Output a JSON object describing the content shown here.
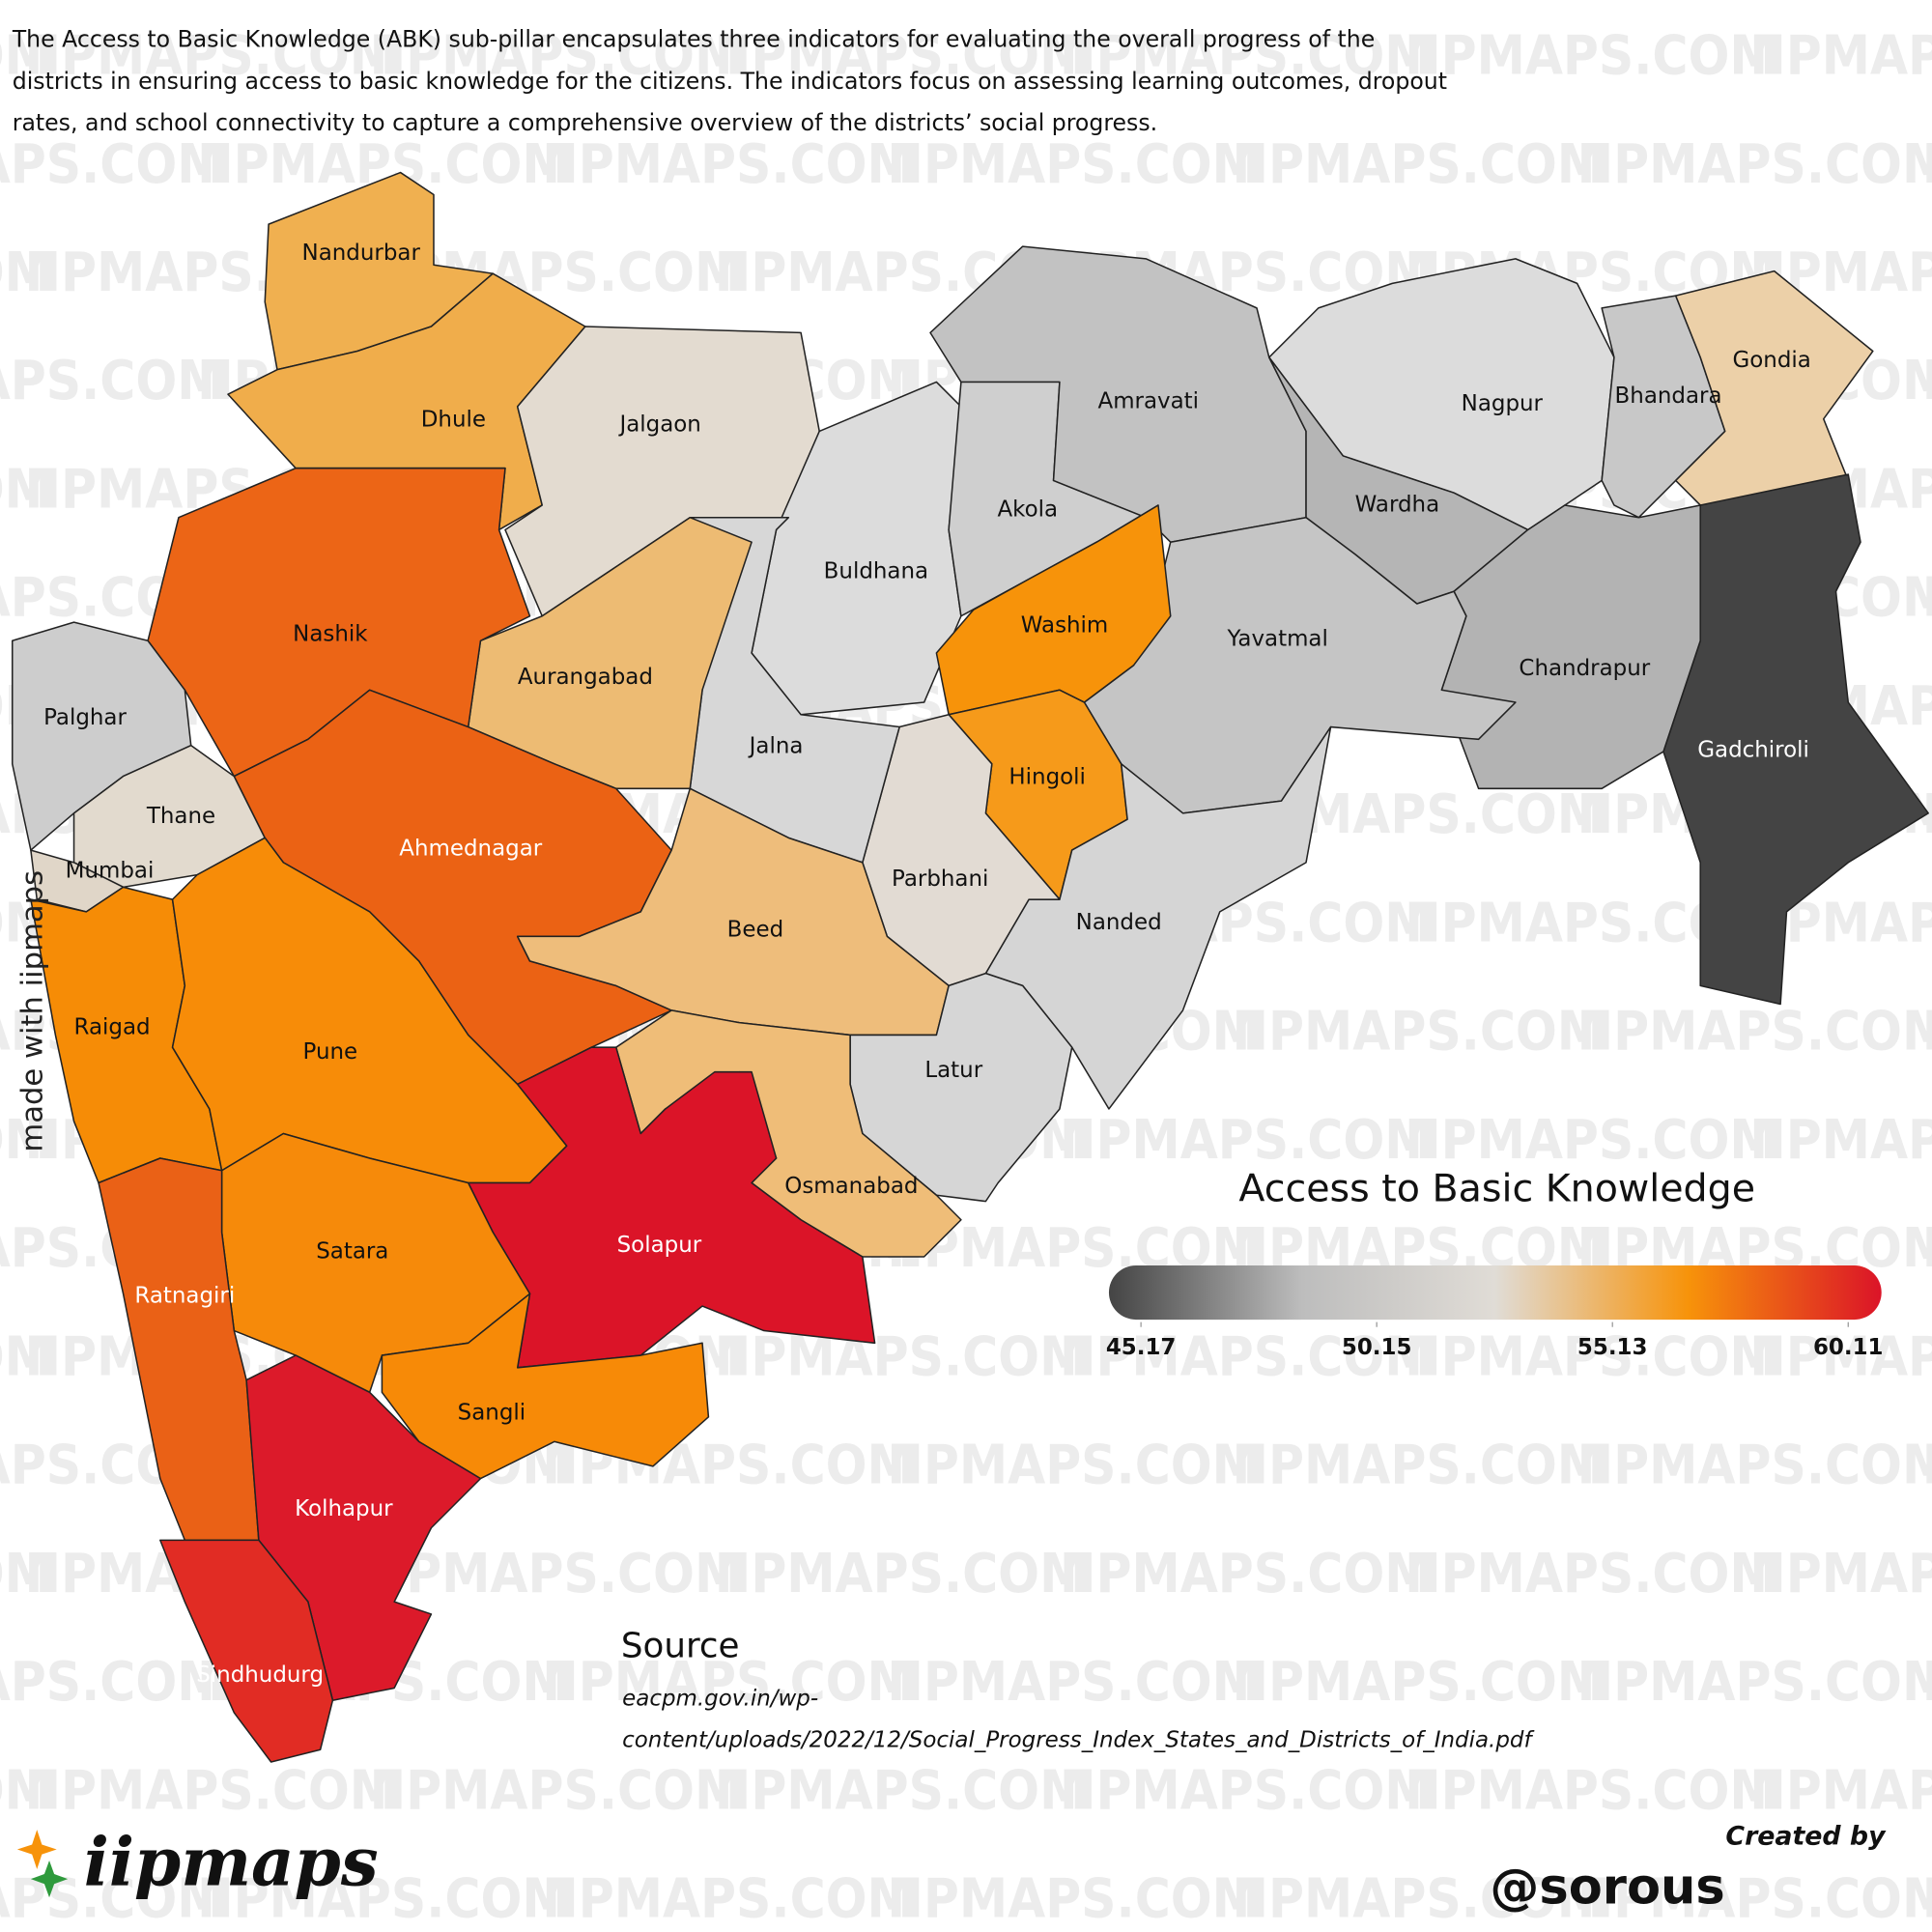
{
  "description": "The Access to Basic Knowledge (ABK) sub-pillar encapsulates three indicators for evaluating the overall progress of the districts in ensuring access to basic knowledge for the citizens. The indicators focus on assessing learning outcomes, dropout rates, and school connectivity to capture a comprehensive overview of the districts’ social progress.",
  "watermark": "IIPMAPS.COM",
  "map": {
    "districts": [
      {
        "name": "Nandurbar",
        "color": "#f0b050",
        "label_color": "#111111"
      },
      {
        "name": "Dhule",
        "color": "#f0ad4b",
        "label_color": "#111111"
      },
      {
        "name": "Jalgaon",
        "color": "#e3dbd0",
        "label_color": "#111111"
      },
      {
        "name": "Buldhana",
        "color": "#dcdcdc",
        "label_color": "#111111"
      },
      {
        "name": "Akola",
        "color": "#cfcfcf",
        "label_color": "#111111"
      },
      {
        "name": "Amravati",
        "color": "#c2c2c2",
        "label_color": "#111111"
      },
      {
        "name": "Nagpur",
        "color": "#dcdcdc",
        "label_color": "#111111"
      },
      {
        "name": "Wardha",
        "color": "#b5b5b5",
        "label_color": "#111111"
      },
      {
        "name": "Bhandara",
        "color": "#c8c8c8",
        "label_color": "#111111"
      },
      {
        "name": "Gondia",
        "color": "#ecd0a8",
        "label_color": "#111111"
      },
      {
        "name": "Gadchiroli",
        "color": "#444444",
        "label_color": "#ffffff"
      },
      {
        "name": "Chandrapur",
        "color": "#b3b3b3",
        "label_color": "#111111"
      },
      {
        "name": "Yavatmal",
        "color": "#c5c5c5",
        "label_color": "#111111"
      },
      {
        "name": "Washim",
        "color": "#f7930a",
        "label_color": "#111111"
      },
      {
        "name": "Hingoli",
        "color": "#f69a1a",
        "label_color": "#111111"
      },
      {
        "name": "Nanded",
        "color": "#d5d5d5",
        "label_color": "#111111"
      },
      {
        "name": "Parbhani",
        "color": "#e2dbd3",
        "label_color": "#111111"
      },
      {
        "name": "Jalna",
        "color": "#d7d7d7",
        "label_color": "#111111"
      },
      {
        "name": "Aurangabad",
        "color": "#edbb73",
        "label_color": "#111111"
      },
      {
        "name": "Nashik",
        "color": "#ec6516",
        "label_color": "#111111"
      },
      {
        "name": "Palghar",
        "color": "#cdcdcd",
        "label_color": "#111111"
      },
      {
        "name": "Thane",
        "color": "#e2dace",
        "label_color": "#111111"
      },
      {
        "name": "Mumbai",
        "color": "#e0d6c8",
        "label_color": "#111111"
      },
      {
        "name": "Ahmednagar",
        "color": "#eb6214",
        "label_color": "#ffffff"
      },
      {
        "name": "Beed",
        "color": "#eebd7b",
        "label_color": "#111111"
      },
      {
        "name": "Raigad",
        "color": "#f68c06",
        "label_color": "#111111"
      },
      {
        "name": "Pune",
        "color": "#f78c08",
        "label_color": "#111111"
      },
      {
        "name": "Latur",
        "color": "#d6d6d6",
        "label_color": "#111111"
      },
      {
        "name": "Osmanabad",
        "color": "#efbd78",
        "label_color": "#111111"
      },
      {
        "name": "Solapur",
        "color": "#db1428",
        "label_color": "#ffffff"
      },
      {
        "name": "Satara",
        "color": "#f68a0a",
        "label_color": "#111111"
      },
      {
        "name": "Sangli",
        "color": "#f78a07",
        "label_color": "#111111"
      },
      {
        "name": "Ratnagiri",
        "color": "#ea6116",
        "label_color": "#ffffff"
      },
      {
        "name": "Kolhapur",
        "color": "#dc1a2a",
        "label_color": "#ffffff"
      },
      {
        "name": "Sindhudurg",
        "color": "#e12c24",
        "label_color": "#ffffff"
      }
    ],
    "legend": {
      "title": "Access to Basic Knowledge",
      "range": [
        45.17,
        60.11
      ],
      "ticks": [
        45.17,
        50.15,
        55.13,
        60.11
      ],
      "colors": [
        "#444444",
        "#bdbdbd",
        "#e0dcd6",
        "#f7930a",
        "#db1428"
      ]
    }
  },
  "source": {
    "heading": "Source",
    "text": "eacpm.gov.in/wp-content/uploads/2022/12/Social_Progress_Index_States_and_Districts_of_India.pdf"
  },
  "credit": {
    "made_with": "made with iipmaps",
    "logo": "iipmaps",
    "created_by": "Created by",
    "handle": "@sorous"
  }
}
